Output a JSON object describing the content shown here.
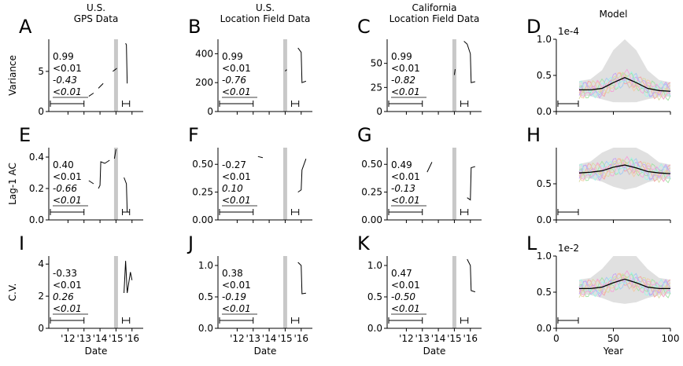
{
  "figure": {
    "col_titles": [
      "U.S.\nGPS Data",
      "U.S.\nLocation Field Data",
      "California\nLocation Field Data",
      "Model"
    ],
    "row_labels": [
      "Variance",
      "Lag-1 AC",
      "C.V."
    ],
    "xlabel_date": "Date",
    "xlabel_model": "Year",
    "date_ticks": [
      "'12",
      "'13",
      "'14",
      "'15",
      "'16"
    ],
    "model_ticks": [
      "0",
      "50",
      "100"
    ]
  },
  "colors": {
    "line": "#000000",
    "shade": "#c8c8c8",
    "band": "#e0e0e0",
    "model_traces": [
      "#f4a3a3",
      "#a3c8f4",
      "#a3e0a3",
      "#f4c8a3",
      "#c8a3f4",
      "#a3f4e8",
      "#f4a3d8",
      "#d8d8a3"
    ]
  },
  "chart_data": [
    {
      "panel": "A",
      "type": "line",
      "title": "U.S.\nGPS Data",
      "ylabel": "Variance",
      "xlabel": "",
      "ylim": [
        0,
        9
      ],
      "yticks": [
        0,
        5
      ],
      "stats": [
        "0.99",
        "<0.01",
        "-0.43",
        "<0.01"
      ],
      "series": [
        {
          "values": [
            [
              13.0,
              1.8
            ],
            [
              13.3,
              1.9
            ],
            [
              13.6,
              2.3
            ],
            [
              13.9,
              2.9
            ],
            [
              14.2,
              3.5
            ],
            [
              14.5,
              4.2
            ],
            [
              14.8,
              5.0
            ],
            [
              15.0,
              5.3
            ],
            [
              15.05,
              5.4
            ],
            [
              15.6,
              8.5
            ],
            [
              15.65,
              8.3
            ],
            [
              15.7,
              3.5
            ],
            [
              16.0,
              3.4
            ],
            [
              16.3,
              3.4
            ]
          ]
        }
      ]
    },
    {
      "panel": "B",
      "type": "line",
      "title": "U.S.\nLocation Field Data",
      "ylabel": "",
      "xlabel": "",
      "ylim": [
        0,
        500
      ],
      "yticks": [
        0,
        200,
        400
      ],
      "stats": [
        "0.99",
        "<0.01",
        "-0.76",
        "<0.01"
      ],
      "series": [
        {
          "values": [
            [
              13.0,
              100
            ],
            [
              13.5,
              140
            ],
            [
              14.0,
              180
            ],
            [
              14.5,
              230
            ],
            [
              15.0,
              280
            ],
            [
              15.1,
              290
            ],
            [
              15.5,
              470
            ],
            [
              15.8,
              440
            ],
            [
              16.0,
              410
            ],
            [
              16.05,
              200
            ],
            [
              16.3,
              210
            ]
          ]
        }
      ]
    },
    {
      "panel": "C",
      "type": "line",
      "title": "California\nLocation Field Data",
      "ylabel": "",
      "xlabel": "",
      "ylim": [
        0,
        75
      ],
      "yticks": [
        0,
        25,
        50
      ],
      "stats": [
        "0.99",
        "<0.01",
        "-0.82",
        "<0.01"
      ],
      "series": [
        {
          "values": [
            [
              13.0,
              13
            ],
            [
              13.5,
              17
            ],
            [
              14.0,
              22
            ],
            [
              14.5,
              29
            ],
            [
              15.0,
              38
            ],
            [
              15.05,
              44
            ],
            [
              15.6,
              73
            ],
            [
              15.8,
              70
            ],
            [
              16.0,
              60
            ],
            [
              16.05,
              30
            ],
            [
              16.3,
              31
            ]
          ]
        }
      ]
    },
    {
      "panel": "D",
      "type": "line",
      "title": "Model",
      "ylabel": "",
      "xlabel": "",
      "ylim": [
        0,
        1.0
      ],
      "yticks": [
        0.0,
        0.5,
        1.0
      ],
      "ytick_labels": [
        "0.0",
        "0.5",
        "1.0"
      ],
      "scale_note": "1e-4",
      "series": [
        {
          "values": [
            [
              20,
              0.3
            ],
            [
              30,
              0.3
            ],
            [
              40,
              0.32
            ],
            [
              50,
              0.4
            ],
            [
              60,
              0.47
            ],
            [
              70,
              0.4
            ],
            [
              80,
              0.32
            ],
            [
              90,
              0.29
            ],
            [
              100,
              0.28
            ]
          ]
        }
      ]
    },
    {
      "panel": "E",
      "type": "line",
      "title": "",
      "ylabel": "Lag-1 AC",
      "xlabel": "",
      "ylim": [
        0,
        0.46
      ],
      "yticks": [
        0.0,
        0.2,
        0.4
      ],
      "ytick_labels": [
        "0.0",
        "0.2",
        "0.4"
      ],
      "stats": [
        "0.40",
        "<0.01",
        "-0.66",
        "<0.01"
      ],
      "series": [
        {
          "values": [
            [
              13.0,
              0.29
            ],
            [
              13.3,
              0.25
            ],
            [
              13.6,
              0.23
            ],
            [
              13.9,
              0.2
            ],
            [
              14.0,
              0.22
            ],
            [
              14.05,
              0.37
            ],
            [
              14.3,
              0.36
            ],
            [
              14.6,
              0.38
            ],
            [
              14.9,
              0.39
            ],
            [
              15.0,
              0.45
            ],
            [
              15.5,
              0.27
            ],
            [
              15.65,
              0.23
            ],
            [
              15.7,
              0.05
            ],
            [
              16.0,
              0.02
            ],
            [
              16.3,
              0.02
            ]
          ]
        }
      ]
    },
    {
      "panel": "F",
      "type": "line",
      "title": "",
      "ylabel": "",
      "xlabel": "",
      "ylim": [
        0,
        0.65
      ],
      "yticks": [
        0.0,
        0.25,
        0.5
      ],
      "ytick_labels": [
        "0.00",
        "0.25",
        "0.50"
      ],
      "stats": [
        "-0.27",
        "<0.01",
        "0.10",
        "<0.01"
      ],
      "series": [
        {
          "values": [
            [
              13.0,
              0.53
            ],
            [
              13.3,
              0.57
            ],
            [
              13.6,
              0.56
            ],
            [
              14.0,
              0.55
            ],
            [
              14.5,
              0.53
            ],
            [
              15.0,
              0.55
            ],
            [
              15.5,
              0.3
            ],
            [
              15.8,
              0.25
            ],
            [
              16.0,
              0.27
            ],
            [
              16.05,
              0.45
            ],
            [
              16.3,
              0.55
            ]
          ]
        }
      ]
    },
    {
      "panel": "G",
      "type": "line",
      "title": "",
      "ylabel": "",
      "xlabel": "",
      "ylim": [
        0,
        0.65
      ],
      "yticks": [
        0.0,
        0.25,
        0.5
      ],
      "ytick_labels": [
        "0.00",
        "0.25",
        "0.50"
      ],
      "stats": [
        "0.49",
        "<0.01",
        "-0.13",
        "<0.01"
      ],
      "series": [
        {
          "values": [
            [
              13.0,
              0.4
            ],
            [
              13.3,
              0.43
            ],
            [
              13.6,
              0.52
            ],
            [
              14.0,
              0.5
            ],
            [
              14.5,
              0.53
            ],
            [
              15.0,
              0.58
            ],
            [
              15.5,
              0.45
            ],
            [
              15.8,
              0.2
            ],
            [
              16.0,
              0.18
            ],
            [
              16.05,
              0.47
            ],
            [
              16.3,
              0.48
            ]
          ]
        }
      ]
    },
    {
      "panel": "H",
      "type": "line",
      "title": "",
      "ylabel": "",
      "xlabel": "",
      "ylim": [
        0,
        1.0
      ],
      "yticks": [
        0.0,
        0.5
      ],
      "ytick_labels": [
        "0.0",
        "0.5"
      ],
      "series": [
        {
          "values": [
            [
              20,
              0.65
            ],
            [
              30,
              0.66
            ],
            [
              40,
              0.68
            ],
            [
              50,
              0.73
            ],
            [
              60,
              0.76
            ],
            [
              70,
              0.72
            ],
            [
              80,
              0.67
            ],
            [
              90,
              0.65
            ],
            [
              100,
              0.64
            ]
          ]
        }
      ]
    },
    {
      "panel": "I",
      "type": "line",
      "title": "",
      "ylabel": "C.V.",
      "xlabel": "Date",
      "ylim": [
        0,
        4.5
      ],
      "yticks": [
        0,
        2,
        4
      ],
      "stats": [
        "-0.33",
        "<0.01",
        "0.26",
        "<0.01"
      ],
      "series": [
        {
          "values": [
            [
              13.0,
              1.1
            ],
            [
              13.5,
              1.05
            ],
            [
              14.0,
              1.0
            ],
            [
              14.5,
              0.95
            ],
            [
              15.0,
              0.95
            ],
            [
              15.5,
              2.2
            ],
            [
              15.6,
              4.2
            ],
            [
              15.7,
              2.2
            ],
            [
              15.9,
              3.5
            ],
            [
              16.0,
              3.0
            ],
            [
              16.3,
              3.1
            ]
          ]
        }
      ]
    },
    {
      "panel": "J",
      "type": "line",
      "title": "",
      "ylabel": "",
      "xlabel": "Date",
      "ylim": [
        0,
        1.15
      ],
      "yticks": [
        0.0,
        0.5,
        1.0
      ],
      "ytick_labels": [
        "0.0",
        "0.5",
        "1.0"
      ],
      "stats": [
        "0.38",
        "<0.01",
        "-0.19",
        "<0.01"
      ],
      "series": [
        {
          "values": [
            [
              13.0,
              0.75
            ],
            [
              13.5,
              0.77
            ],
            [
              14.0,
              0.8
            ],
            [
              14.5,
              0.85
            ],
            [
              15.0,
              0.78
            ],
            [
              15.5,
              0.95
            ],
            [
              15.8,
              1.05
            ],
            [
              16.0,
              1.0
            ],
            [
              16.05,
              0.55
            ],
            [
              16.3,
              0.56
            ]
          ]
        }
      ]
    },
    {
      "panel": "K",
      "type": "line",
      "title": "",
      "ylabel": "",
      "xlabel": "Date",
      "ylim": [
        0,
        1.15
      ],
      "yticks": [
        0.0,
        0.5,
        1.0
      ],
      "ytick_labels": [
        "0.0",
        "0.5",
        "1.0"
      ],
      "stats": [
        "0.47",
        "<0.01",
        "-0.50",
        "<0.01"
      ],
      "series": [
        {
          "values": [
            [
              13.0,
              0.75
            ],
            [
              13.5,
              0.78
            ],
            [
              14.0,
              0.82
            ],
            [
              14.5,
              0.85
            ],
            [
              15.0,
              0.95
            ],
            [
              15.5,
              0.95
            ],
            [
              15.8,
              1.1
            ],
            [
              16.0,
              1.0
            ],
            [
              16.05,
              0.6
            ],
            [
              16.3,
              0.58
            ]
          ]
        }
      ]
    },
    {
      "panel": "L",
      "type": "line",
      "title": "",
      "ylabel": "",
      "xlabel": "Year",
      "ylim": [
        0,
        1.0
      ],
      "yticks": [
        0.0,
        0.5,
        1.0
      ],
      "ytick_labels": [
        "0.0",
        "0.5",
        "1.0"
      ],
      "scale_note": "1e-2",
      "series": [
        {
          "values": [
            [
              20,
              0.55
            ],
            [
              30,
              0.55
            ],
            [
              40,
              0.57
            ],
            [
              50,
              0.63
            ],
            [
              60,
              0.68
            ],
            [
              70,
              0.63
            ],
            [
              80,
              0.57
            ],
            [
              90,
              0.55
            ],
            [
              100,
              0.55
            ]
          ]
        }
      ]
    }
  ]
}
